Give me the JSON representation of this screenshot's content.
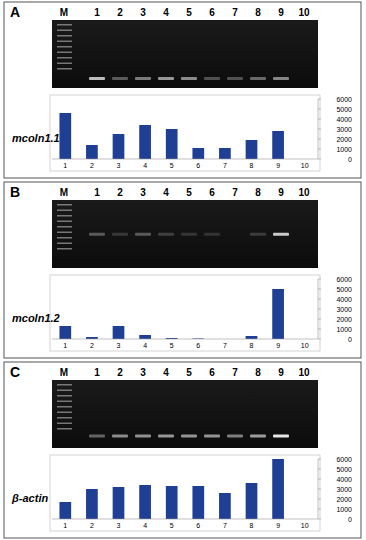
{
  "chart_data": [
    {
      "type": "bar",
      "title": "A",
      "ylabel": "mcoln1.1",
      "annotations": [
        "M",
        "1",
        "2",
        "3",
        "4",
        "5",
        "6",
        "7",
        "8",
        "9",
        "10"
      ],
      "categories": [
        "1",
        "2",
        "3",
        "4",
        "5",
        "6",
        "7",
        "8",
        "9",
        "10"
      ],
      "values": [
        4600,
        1400,
        2500,
        3400,
        3000,
        1100,
        1100,
        1900,
        2800,
        0
      ],
      "color": "#1f3f94",
      "ylim": [
        0,
        6000
      ],
      "yticks": [
        0,
        1000,
        2000,
        3000,
        4000,
        5000,
        6000
      ],
      "grid": false
    },
    {
      "type": "bar",
      "title": "B",
      "ylabel": "mcoln1.2",
      "annotations": [
        "M",
        "1",
        "2",
        "3",
        "4",
        "5",
        "6",
        "7",
        "8",
        "9",
        "10"
      ],
      "categories": [
        "1",
        "2",
        "3",
        "4",
        "5",
        "6",
        "7",
        "8",
        "9",
        "10"
      ],
      "values": [
        1300,
        200,
        1300,
        400,
        100,
        50,
        0,
        300,
        5000,
        0
      ],
      "color": "#1f3f94",
      "ylim": [
        0,
        6000
      ],
      "yticks": [
        0,
        1000,
        2000,
        3000,
        4000,
        5000,
        6000
      ],
      "grid": false
    },
    {
      "type": "bar",
      "title": "C",
      "ylabel": "β-actin",
      "annotations": [
        "M",
        "1",
        "2",
        "3",
        "4",
        "5",
        "6",
        "7",
        "8",
        "9",
        "10"
      ],
      "categories": [
        "1",
        "2",
        "3",
        "4",
        "5",
        "6",
        "7",
        "8",
        "9",
        "10"
      ],
      "values": [
        1700,
        3000,
        3200,
        3400,
        3300,
        3300,
        2600,
        3600,
        6000,
        0
      ],
      "color": "#1f3f94",
      "ylim": [
        0,
        6000
      ],
      "yticks": [
        0,
        1000,
        2000,
        3000,
        4000,
        5000,
        6000
      ],
      "grid": false
    }
  ]
}
